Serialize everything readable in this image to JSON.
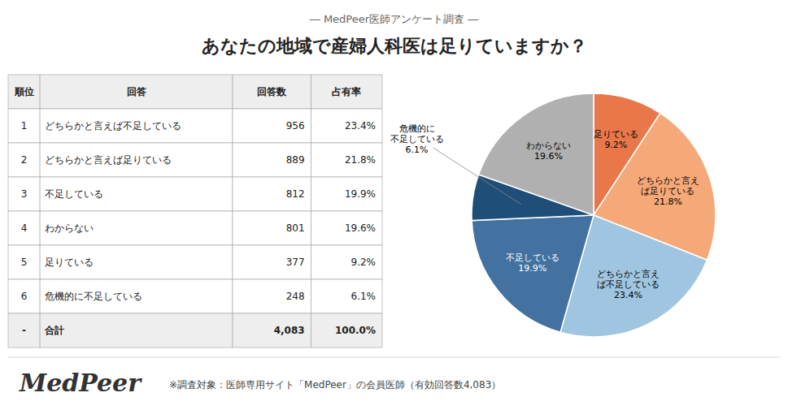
{
  "chart_data": [
    {
      "type": "pie",
      "subtitle": "― MedPeer医師アンケート調査 ―",
      "title": "あなたの地域で産婦人科医は足りていますか？",
      "categories": [
        "足りている",
        "どちらかと言え\nば足りている",
        "どちらかと言え\nば不足している",
        "不足している",
        "危機的に\n不足している",
        "わからない"
      ],
      "values": [
        9.2,
        21.8,
        23.4,
        19.9,
        6.1,
        19.6
      ],
      "value_labels": [
        "9.2%",
        "21.8%",
        "23.4%",
        "19.9%",
        "6.1%",
        "19.6%"
      ],
      "colors": [
        "#e8784a",
        "#f5a878",
        "#9fc5e0",
        "#4472a0",
        "#1f4e79",
        "#b0b0b0"
      ],
      "data_labels": true,
      "annotations": [
        "MedPeer",
        "※調査対象：医師専用サイト「MedPeer」の会員医師（有効回答数4,083）"
      ]
    },
    {
      "type": "table",
      "columns": [
        "順位",
        "回答",
        "回答数",
        "占有率"
      ],
      "rows": [
        [
          "1",
          "どちらかと言えば不足している",
          "956",
          "23.4%"
        ],
        [
          "2",
          "どちらかと言えば足りている",
          "889",
          "21.8%"
        ],
        [
          "3",
          "不足している",
          "812",
          "19.9%"
        ],
        [
          "4",
          "わからない",
          "801",
          "19.6%"
        ],
        [
          "5",
          "足りている",
          "377",
          "9.2%"
        ],
        [
          "6",
          "危機的に不足している",
          "248",
          "6.1%"
        ],
        [
          "-",
          "合計",
          "4,083",
          "100.0%"
        ]
      ]
    }
  ]
}
